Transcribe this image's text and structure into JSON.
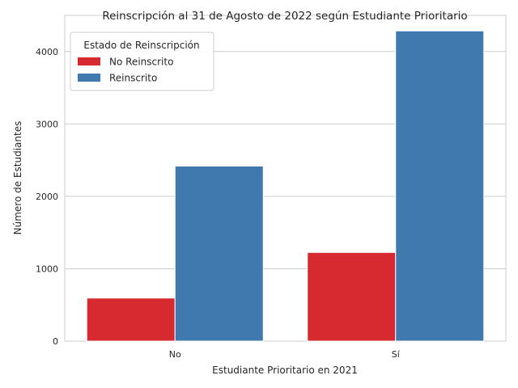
{
  "chart_data": {
    "type": "bar",
    "title": "Reinscripción al 31 de Agosto de 2022 según Estudiante Prioritario",
    "xlabel": "Estudiante Prioritario en 2021",
    "ylabel": "Número de Estudiantes",
    "categories": [
      "No",
      "Sí"
    ],
    "series": [
      {
        "name": "No Reinscrito",
        "values": [
          595,
          1225
        ],
        "color": "#d62a30"
      },
      {
        "name": "Reinscrito",
        "values": [
          2418,
          4285
        ],
        "color": "#4079ad"
      }
    ],
    "ylim": [
      0,
      4500
    ],
    "yticks": [
      0,
      1000,
      2000,
      3000,
      4000
    ],
    "grid": true,
    "legend": {
      "title": "Estado de Reinscripción",
      "position": "top-left"
    }
  }
}
